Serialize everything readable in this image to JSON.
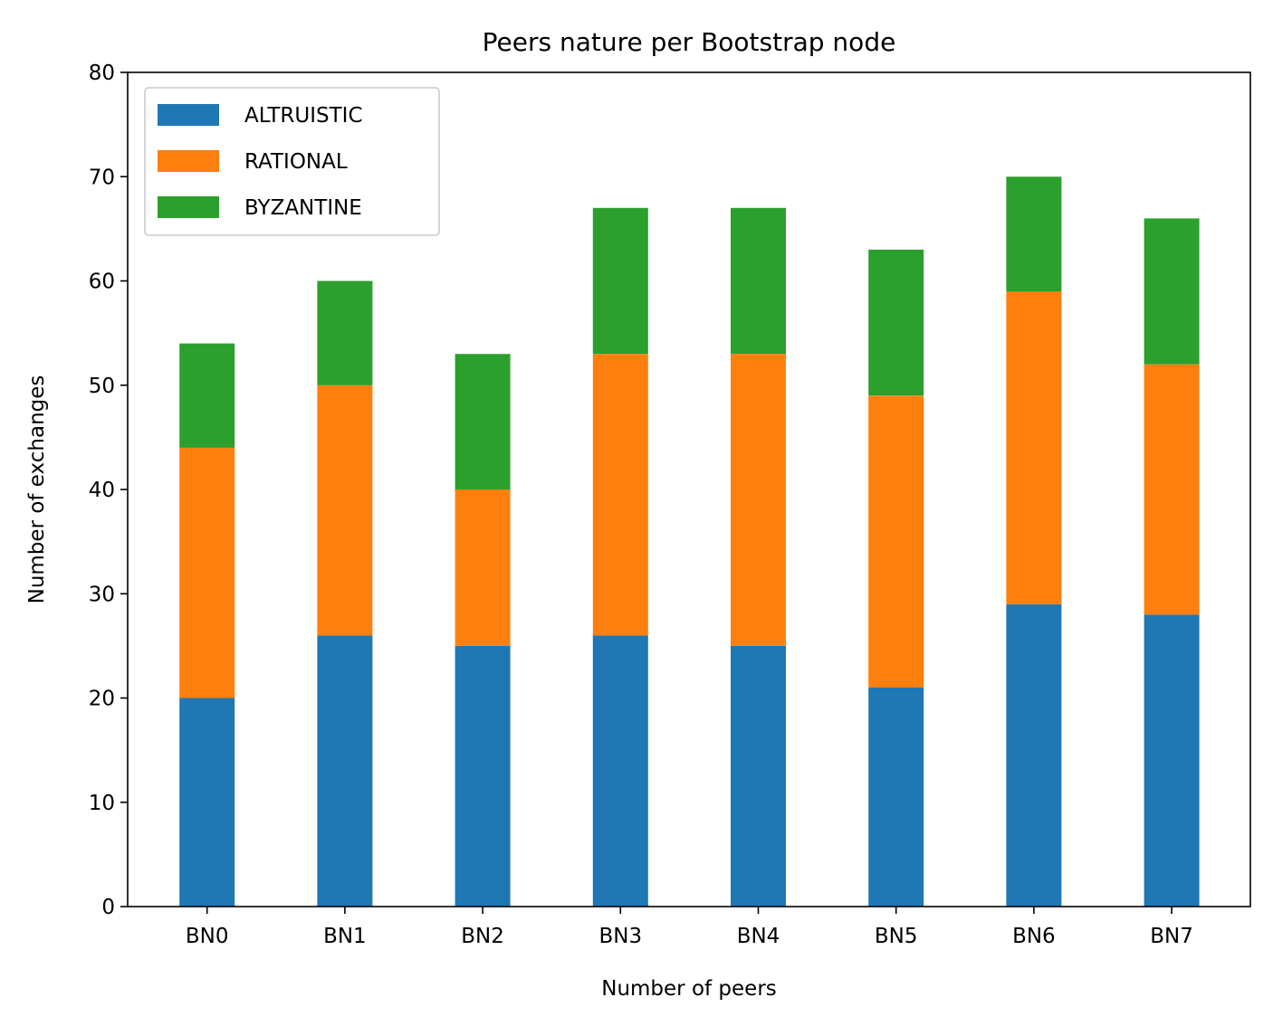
{
  "chart_data": {
    "type": "bar",
    "stacked": true,
    "title": "Peers nature per Bootstrap node",
    "xlabel": "Number of peers",
    "ylabel": "Number of exchanges",
    "categories": [
      "BN0",
      "BN1",
      "BN2",
      "BN3",
      "BN4",
      "BN5",
      "BN6",
      "BN7"
    ],
    "series": [
      {
        "name": "ALTRUISTIC",
        "color": "#1f77b4",
        "values": [
          20,
          26,
          25,
          26,
          25,
          21,
          29,
          28
        ]
      },
      {
        "name": "RATIONAL",
        "color": "#ff7f0e",
        "values": [
          24,
          24,
          15,
          27,
          28,
          28,
          30,
          24
        ]
      },
      {
        "name": "BYZANTINE",
        "color": "#2ca02c",
        "values": [
          10,
          10,
          13,
          14,
          14,
          14,
          11,
          14
        ]
      }
    ],
    "ylim": [
      0,
      80
    ],
    "yticks": [
      0,
      10,
      20,
      30,
      40,
      50,
      60,
      70,
      80
    ],
    "grid": false,
    "legend_position": "top-left"
  }
}
